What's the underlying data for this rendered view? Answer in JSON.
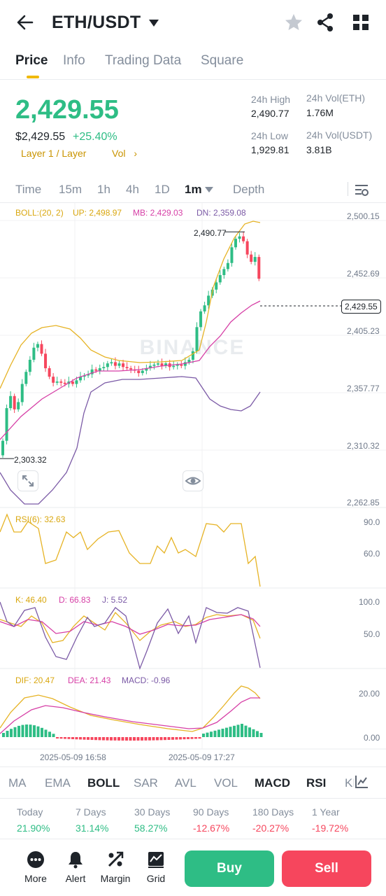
{
  "header": {
    "pair": "ETH/USDT"
  },
  "top_tabs": [
    "Price",
    "Info",
    "Trading Data",
    "Square"
  ],
  "ticker": {
    "last_price": "2,429.55",
    "usd_price": "$2,429.55",
    "change_pct": "+25.40%",
    "tag_layer": "Layer 1 / Layer",
    "tag_vol": "Vol",
    "high_label": "24h High",
    "high_value": "2,490.77",
    "low_label": "24h Low",
    "low_value": "1,929.81",
    "vol_eth_label": "24h Vol(ETH)",
    "vol_eth_value": "1.76M",
    "vol_usdt_label": "24h Vol(USDT)",
    "vol_usdt_value": "3.81B"
  },
  "intervals": [
    "Time",
    "15m",
    "1h",
    "4h",
    "1D",
    "1m",
    "Depth"
  ],
  "chart": {
    "boll_label": "BOLL:(20, 2)",
    "up_label": "UP: 2,498.97",
    "mb_label": "MB: 2,429.03",
    "dn_label": "DN: 2,359.08",
    "y_ticks": [
      "2,500.15",
      "2,452.69",
      "2,405.23",
      "2,357.77",
      "2,310.32",
      "2,262.85"
    ],
    "current_price_tag": "2,429.55",
    "high_marker": "2,490.77",
    "low_marker": "2,303.32",
    "watermark": "BINANCE",
    "rsi_label": "RSI(6): 32.63",
    "rsi_ticks": [
      "90.0",
      "60.0"
    ],
    "k_label": "K: 46.40",
    "d_label": "D: 66.83",
    "j_label": "J: 5.52",
    "kdj_ticks": [
      "100.0",
      "50.0"
    ],
    "dif_label": "DIF: 20.47",
    "dea_label": "DEA: 21.43",
    "macd_label": "MACD: -0.96",
    "macd_ticks": [
      "20.00",
      "0.00"
    ],
    "time_labels": [
      "2025-05-09 16:58",
      "2025-05-09 17:27"
    ]
  },
  "colors": {
    "up": "#2ebd85",
    "down": "#f6465d",
    "boll_up": "#e6b325",
    "boll_mb": "#d63fa6",
    "boll_dn": "#7b5aa6",
    "accent": "#f0b90b"
  },
  "indicator_tabs": [
    "MA",
    "EMA",
    "BOLL",
    "SAR",
    "AVL",
    "VOL",
    "MACD",
    "RSI",
    "KDJ"
  ],
  "performance": [
    {
      "label": "Today",
      "value": "21.90%"
    },
    {
      "label": "7 Days",
      "value": "31.14%"
    },
    {
      "label": "30 Days",
      "value": "58.27%"
    },
    {
      "label": "90 Days",
      "value": "-12.67%"
    },
    {
      "label": "180 Days",
      "value": "-20.27%"
    },
    {
      "label": "1 Year",
      "value": "-19.72%"
    }
  ],
  "bottom": {
    "more": "More",
    "alert": "Alert",
    "margin": "Margin",
    "grid": "Grid",
    "buy": "Buy",
    "sell": "Sell"
  }
}
